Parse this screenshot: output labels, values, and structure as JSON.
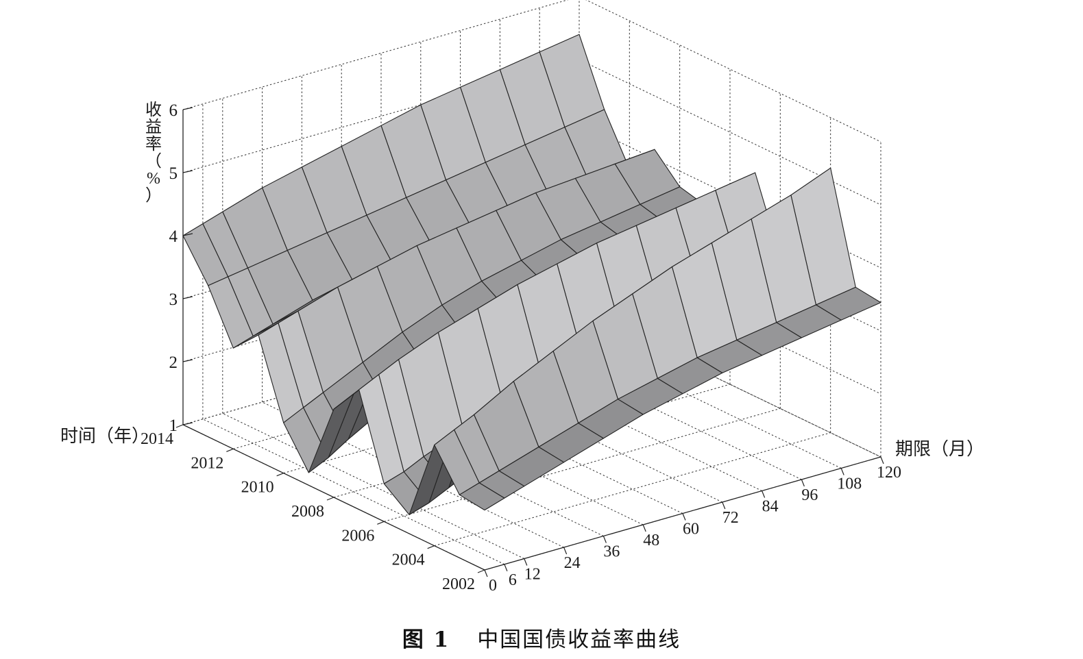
{
  "caption": {
    "figure_label": "图 1",
    "text": "中国国债收益率曲线"
  },
  "chart_data": {
    "type": "surface",
    "title": "",
    "zlabel_chars": [
      "收",
      "益",
      "率",
      "（",
      "%",
      "）"
    ],
    "ylabel": "时间（年）",
    "xlabel": "期限（月）",
    "zlim": [
      1,
      6
    ],
    "z_ticks": [
      "1",
      "2",
      "3",
      "4",
      "5",
      "6"
    ],
    "x_ticks": [
      "0",
      "6",
      "12",
      "24",
      "36",
      "48",
      "60",
      "72",
      "84",
      "96",
      "108",
      "120"
    ],
    "y_ticks": [
      "2002",
      "2004",
      "2006",
      "2008",
      "2010",
      "2012",
      "2014"
    ],
    "grid": true,
    "colors": {
      "surface_light": "#d4d4d6",
      "surface_dark": "#1e1e20",
      "edge": "#222222"
    },
    "maturities": [
      0,
      6,
      12,
      24,
      36,
      48,
      60,
      72,
      84,
      96,
      108,
      120
    ],
    "years": [
      2002,
      2003,
      2004,
      2005,
      2006,
      2007,
      2008,
      2009,
      2010,
      2011,
      2012,
      2013,
      2014
    ],
    "yields": [
      [
        1.95,
        2.05,
        2.15,
        2.35,
        2.55,
        2.75,
        2.9,
        3.05,
        3.15,
        3.25,
        3.35,
        3.45
      ],
      [
        2.0,
        2.1,
        2.2,
        2.4,
        2.6,
        2.8,
        2.95,
        3.1,
        3.2,
        3.3,
        3.4,
        3.5
      ],
      [
        2.6,
        2.75,
        2.9,
        3.25,
        3.55,
        3.85,
        4.1,
        4.35,
        4.55,
        4.75,
        4.95,
        5.2
      ],
      [
        1.3,
        1.4,
        1.55,
        1.85,
        2.15,
        2.45,
        2.7,
        2.95,
        3.15,
        3.35,
        3.5,
        3.65
      ],
      [
        1.6,
        1.7,
        1.85,
        2.1,
        2.35,
        2.55,
        2.75,
        2.9,
        3.05,
        3.2,
        3.3,
        3.4
      ],
      [
        2.9,
        3.05,
        3.2,
        3.45,
        3.65,
        3.85,
        4.0,
        4.15,
        4.25,
        4.35,
        4.45,
        4.55
      ],
      [
        2.4,
        2.55,
        2.7,
        2.95,
        3.15,
        3.35,
        3.5,
        3.65,
        3.8,
        3.9,
        4.0,
        4.1
      ],
      [
        1.2,
        1.35,
        1.55,
        1.9,
        2.3,
        2.6,
        2.9,
        3.1,
        3.3,
        3.45,
        3.55,
        3.65
      ],
      [
        1.8,
        1.95,
        2.1,
        2.4,
        2.7,
        2.95,
        3.15,
        3.3,
        3.45,
        3.55,
        3.65,
        3.75
      ],
      [
        3.0,
        3.1,
        3.2,
        3.4,
        3.55,
        3.7,
        3.8,
        3.9,
        4.0,
        4.05,
        4.1,
        4.15
      ],
      [
        2.6,
        2.7,
        2.8,
        3.0,
        3.15,
        3.25,
        3.35,
        3.45,
        3.5,
        3.55,
        3.6,
        3.65
      ],
      [
        3.4,
        3.45,
        3.5,
        3.6,
        3.7,
        3.8,
        3.9,
        4.0,
        4.1,
        4.2,
        4.3,
        4.4
      ],
      [
        4.0,
        4.1,
        4.2,
        4.4,
        4.55,
        4.7,
        4.85,
        5.0,
        5.1,
        5.2,
        5.3,
        5.4
      ]
    ]
  }
}
